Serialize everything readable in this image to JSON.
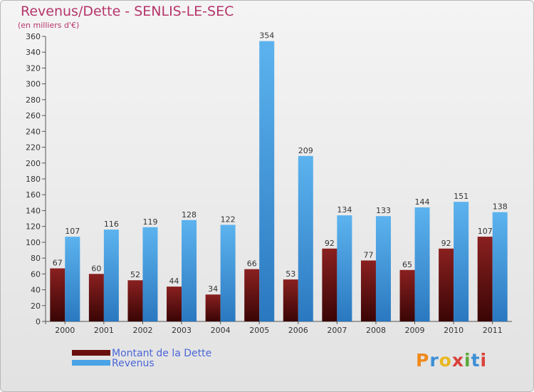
{
  "chart_data": {
    "type": "bar",
    "title": "Revenus/Dette - SENLIS-LE-SEC",
    "subtitle": "(en milliers d'€)",
    "categories": [
      "2000",
      "2001",
      "2002",
      "2003",
      "2004",
      "2005",
      "2006",
      "2007",
      "2008",
      "2009",
      "2010",
      "2011"
    ],
    "series": [
      {
        "name": "Montant de la Dette",
        "color": "#7a1a1a",
        "values": [
          67,
          60,
          52,
          44,
          34,
          66,
          53,
          92,
          77,
          65,
          92,
          107
        ]
      },
      {
        "name": "Revenus",
        "color": "#4aa3e6",
        "values": [
          107,
          116,
          119,
          128,
          122,
          354,
          209,
          134,
          133,
          144,
          151,
          138
        ]
      }
    ],
    "ylim": [
      0,
      360
    ],
    "ytick_step": 20,
    "grid": false,
    "legend_position": "bottom-left"
  },
  "logo": {
    "text": "Proxiti"
  }
}
